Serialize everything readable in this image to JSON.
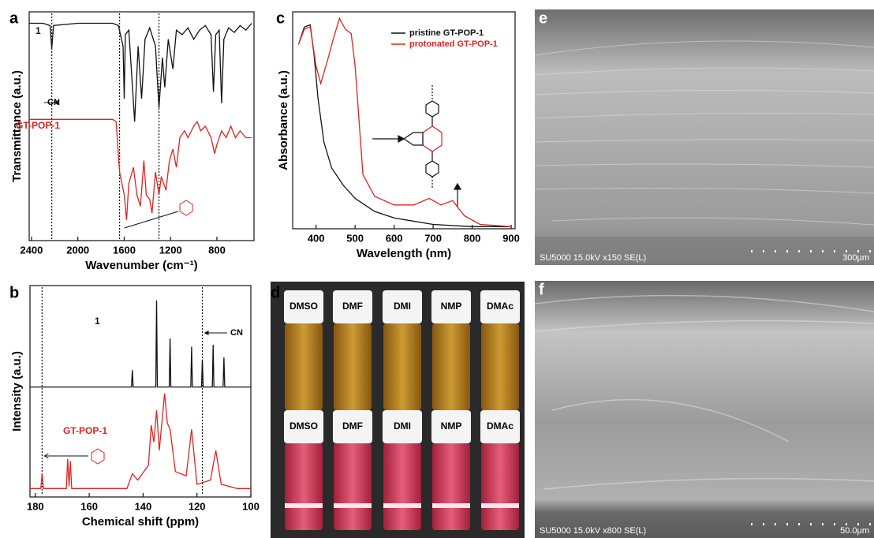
{
  "chart_data": [
    {
      "type": "line",
      "panel": "a",
      "xlabel": "Wavenumber (cm⁻¹)",
      "ylabel": "Transmittance (a.u.)",
      "xlim": [
        2420,
        480
      ],
      "ylim": [
        0,
        100
      ],
      "xticks": [
        2400,
        2000,
        1600,
        1200,
        800
      ],
      "series": [
        {
          "name": "1",
          "color": "#111111",
          "x": [
            2420,
            2300,
            2240,
            2225,
            2210,
            2000,
            1800,
            1700,
            1650,
            1610,
            1600,
            1590,
            1560,
            1510,
            1480,
            1450,
            1420,
            1380,
            1330,
            1300,
            1270,
            1250,
            1220,
            1180,
            1150,
            1100,
            1050,
            1000,
            950,
            900,
            850,
            830,
            810,
            780,
            760,
            740,
            700,
            650,
            600,
            550,
            500
          ],
          "values": [
            95,
            95,
            94,
            84,
            94,
            95,
            95,
            95,
            94,
            85,
            62,
            90,
            92,
            52,
            85,
            62,
            88,
            93,
            85,
            58,
            80,
            67,
            88,
            75,
            92,
            90,
            93,
            88,
            92,
            94,
            90,
            65,
            90,
            92,
            60,
            88,
            93,
            91,
            94,
            92,
            95
          ]
        },
        {
          "name": "GT-POP-1",
          "color": "#e0231f",
          "x": [
            2420,
            1700,
            1670,
            1640,
            1600,
            1580,
            1560,
            1520,
            1490,
            1460,
            1430,
            1410,
            1380,
            1360,
            1330,
            1300,
            1280,
            1240,
            1210,
            1180,
            1150,
            1120,
            1080,
            1050,
            1000,
            970,
            940,
            900,
            850,
            820,
            800,
            760,
            720,
            680,
            640,
            600,
            550,
            500
          ],
          "values": [
            53,
            53,
            52,
            30,
            20,
            9,
            25,
            32,
            20,
            15,
            35,
            20,
            18,
            12,
            30,
            20,
            28,
            22,
            35,
            40,
            32,
            45,
            48,
            45,
            50,
            52,
            48,
            50,
            45,
            38,
            42,
            48,
            45,
            50,
            45,
            48,
            45,
            45
          ]
        }
      ],
      "vlines": [
        2225,
        1640,
        1300
      ],
      "annotation": "CN"
    },
    {
      "type": "line",
      "panel": "b",
      "xlabel": "Chemical shift (ppm)",
      "ylabel": "Intensity (a.u.)",
      "xlim": [
        182,
        100
      ],
      "ylim": [
        0,
        100
      ],
      "xticks": [
        180,
        160,
        140,
        120,
        100
      ],
      "series": [
        {
          "name": "1",
          "color": "#111111",
          "x": [
            182,
            144.3,
            144,
            143.7,
            135.3,
            135,
            134.7,
            130.3,
            130,
            129.7,
            122.3,
            122,
            121.7,
            118.3,
            118,
            117.7,
            114.3,
            114,
            113.7,
            110.3,
            110,
            109.7,
            100
          ],
          "values": [
            52,
            52,
            60,
            52,
            52,
            93,
            52,
            52,
            75,
            52,
            52,
            71,
            52,
            52,
            65,
            52,
            52,
            72,
            52,
            52,
            66,
            52,
            52
          ]
        },
        {
          "name": "GT-POP-1",
          "color": "#e0231f",
          "x": [
            182,
            178,
            177.5,
            177,
            168.5,
            168,
            167.5,
            167,
            166.5,
            146,
            144,
            142,
            138,
            137,
            136,
            135,
            134,
            132,
            131,
            130,
            128,
            124,
            122,
            120,
            115,
            113,
            111,
            105,
            100
          ],
          "values": [
            4,
            4,
            11,
            4,
            4,
            18,
            5,
            17,
            4,
            4,
            11,
            8,
            15,
            34,
            26,
            41,
            22,
            49,
            35,
            32,
            12,
            10,
            32,
            6,
            8,
            22,
            6,
            4,
            4
          ]
        }
      ],
      "vlines": [
        177.5,
        118
      ],
      "annotation": "CN"
    },
    {
      "type": "line",
      "panel": "c",
      "xlabel": "Wavelength (nm)",
      "ylabel": "Absorbance (a.u.)",
      "xlim": [
        340,
        910
      ],
      "ylim": [
        0,
        100
      ],
      "xticks": [
        400,
        500,
        600,
        700,
        800,
        900
      ],
      "legend": "upper right",
      "series": [
        {
          "name": "pristine GT-POP-1",
          "color": "#111111",
          "x": [
            355,
            370,
            385,
            395,
            405,
            420,
            440,
            470,
            500,
            550,
            600,
            700,
            800,
            900
          ],
          "values": [
            85,
            93,
            94,
            80,
            60,
            40,
            28,
            20,
            14,
            8,
            5,
            2,
            1,
            1
          ]
        },
        {
          "name": "protonated GT-POP-1",
          "color": "#e0231f",
          "x": [
            355,
            370,
            385,
            400,
            412,
            430,
            445,
            460,
            475,
            490,
            500,
            520,
            550,
            600,
            650,
            690,
            720,
            750,
            780,
            820,
            900
          ],
          "values": [
            85,
            92,
            93,
            75,
            67,
            78,
            88,
            97,
            92,
            90,
            75,
            25,
            15,
            11,
            11,
            14,
            11,
            13,
            6,
            2,
            1
          ]
        }
      ]
    }
  ],
  "photo_d": {
    "panel": "d",
    "rows": [
      [
        "DMSO",
        "DMF",
        "DMI",
        "NMP",
        "DMAc"
      ],
      [
        "DMSO",
        "DMF",
        "DMI",
        "NMP",
        "DMAc"
      ]
    ]
  },
  "sem_e": {
    "panel": "e",
    "info": "SU5000 15.0kV x150 SE(L)",
    "scale": "300μm"
  },
  "sem_f": {
    "panel": "f",
    "info": "SU5000 15.0kV x800 SE(L)",
    "scale": "50.0μm"
  }
}
